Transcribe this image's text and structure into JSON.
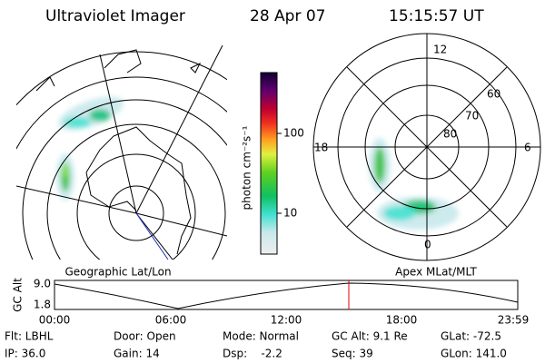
{
  "header": {
    "title": "Ultraviolet Imager",
    "date": "28 Apr 07",
    "time": "15:15:57 UT"
  },
  "colorbar": {
    "label": "photon cm⁻²s⁻¹",
    "ticks": [
      "100",
      "10"
    ]
  },
  "left_panel": {
    "label": "Geographic Lat/Lon"
  },
  "right_panel": {
    "label": "Apex MLat/MLT",
    "mlt_labels": [
      "12",
      "18",
      "6",
      "0"
    ],
    "lat_labels": [
      "60",
      "70",
      "80"
    ]
  },
  "altitude_plot": {
    "ylabel": "GC Alt",
    "yticks": [
      "9.0",
      "1.8"
    ],
    "xticks": [
      "00:00",
      "06:00",
      "12:00",
      "18:00",
      "23:59"
    ]
  },
  "status": [
    [
      "Flt: LBHL",
      "Door: Open",
      "Mode: Normal",
      "GC Alt: 9.1 Re",
      "GLat: -72.5"
    ],
    [
      "IP: 36.0",
      "Gain: 14",
      "Dsp:    -2.2",
      "Seq: 39",
      "GLon: 141.0"
    ]
  ]
}
